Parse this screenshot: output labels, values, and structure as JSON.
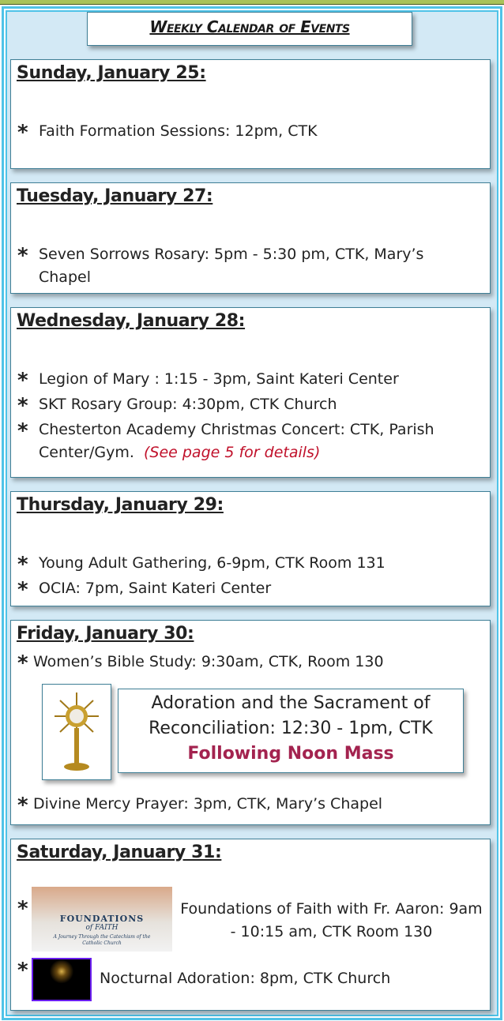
{
  "title": "Weekly Calendar of Events",
  "days": [
    {
      "heading": "Sunday, January 25:",
      "items": [
        "Faith Formation Sessions: 12pm, CTK"
      ]
    },
    {
      "heading": "Tuesday, January 27:",
      "items": [
        "Seven Sorrows Rosary: 5pm - 5:30 pm, CTK, Mary’s Chapel"
      ]
    },
    {
      "heading": "Wednesday, January 28:",
      "items": [
        "Legion of Mary : 1:15 - 3pm, Saint Kateri Center",
        "SKT Rosary Group: 4:30pm, CTK Church",
        "Chesterton Academy Christmas Concert: CTK, Parish Center/Gym."
      ],
      "note": "(See page 5 for details)"
    },
    {
      "heading": "Thursday, January 29:",
      "items": [
        "Young Adult Gathering, 6-9pm, CTK Room 131",
        "OCIA: 7pm, Saint Kateri Center"
      ]
    },
    {
      "heading": "Friday,  January 30:",
      "items": [
        "Women’s Bible Study: 9:30am, CTK, Room 130",
        "Divine Mercy Prayer: 3pm, CTK, Mary’s Chapel"
      ],
      "callout": {
        "line1": "Adoration and the Sacrament of",
        "line2": "Reconciliation: 12:30 - 1pm, CTK",
        "line3": "Following Noon Mass"
      }
    },
    {
      "heading": "Saturday, January 31:",
      "items": [
        "Foundations of Faith with Fr. Aaron: 9am - 10:15 am, CTK Room 130",
        "Nocturnal Adoration: 8pm, CTK Church"
      ],
      "image_text": {
        "title": "FOUNDATIONS",
        "subtitle": "of FAITH",
        "tagline": "A Journey Through the Catechism of the Catholic Church"
      }
    }
  ],
  "bullet": "*",
  "colors": {
    "frame": "#4fc3e8",
    "background": "#d3e9f5",
    "callout_emphasis": "#a3234f",
    "note": "#c0102a"
  }
}
